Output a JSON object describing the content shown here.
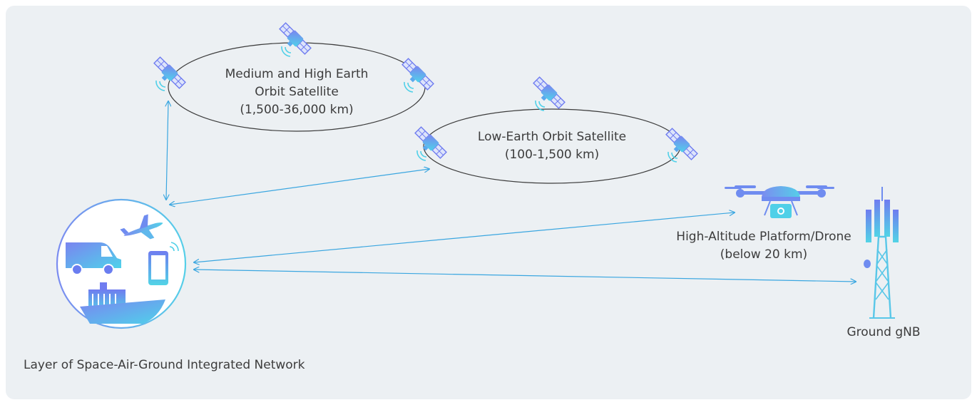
{
  "diagram": {
    "caption": "Layer of Space-Air-Ground Integrated Network",
    "nodes": {
      "meo_geo": {
        "line1": "Medium and High Earth",
        "line2": "Orbit Satellite",
        "line3": "(1,500-36,000 km)"
      },
      "leo": {
        "line1": "Low-Earth Orbit Satellite",
        "line2": "(100-1,500 km)"
      },
      "hap": {
        "line1": "High-Altitude Platform/Drone",
        "line2": "(below 20 km)"
      },
      "ground": {
        "line1": "Ground gNB"
      }
    },
    "icons": [
      "satellite-icon",
      "drone-icon",
      "cell-tower-icon",
      "van-icon",
      "airplane-icon",
      "smartphone-icon",
      "ship-icon"
    ],
    "colors": {
      "background": "#ecf0f3",
      "link": "#3aa6e0",
      "orbit": "#3c3c3c",
      "gradient_start": "#6f8cf0",
      "gradient_end": "#4fd0e8"
    }
  }
}
